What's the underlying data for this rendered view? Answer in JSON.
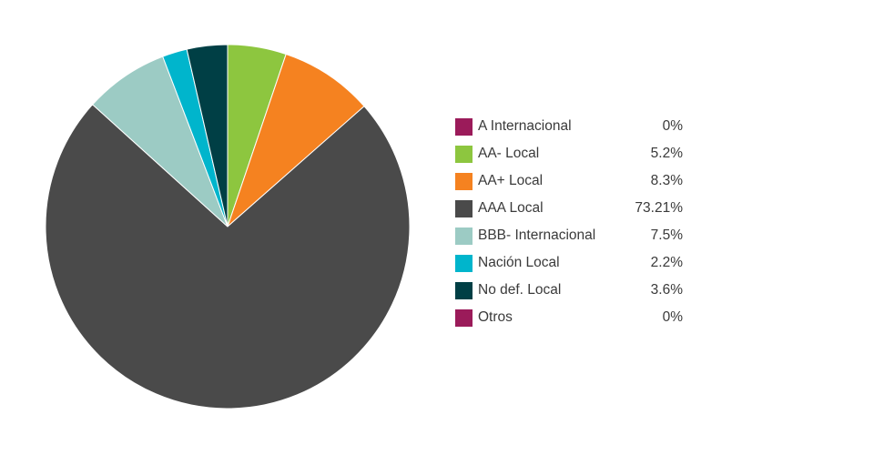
{
  "chart_data": {
    "type": "pie",
    "start_angle_deg": 0,
    "direction": "clockwise",
    "legend_position": "right",
    "slices": [
      {
        "label": "A Internacional",
        "value": 0,
        "value_label": "0%",
        "color": "#9b1b5a"
      },
      {
        "label": "AA- Local",
        "value": 5.2,
        "value_label": "5.2%",
        "color": "#8dc63f"
      },
      {
        "label": "AA+ Local",
        "value": 8.3,
        "value_label": "8.3%",
        "color": "#f58220"
      },
      {
        "label": "AAA Local",
        "value": 73.21,
        "value_label": "73.21%",
        "color": "#4a4a4a"
      },
      {
        "label": "BBB- Internacional",
        "value": 7.5,
        "value_label": "7.5%",
        "color": "#9ccbc4"
      },
      {
        "label": "Nación Local",
        "value": 2.2,
        "value_label": "2.2%",
        "color": "#00b5cc"
      },
      {
        "label": "No def. Local",
        "value": 3.6,
        "value_label": "3.6%",
        "color": "#003f45"
      },
      {
        "label": "Otros",
        "value": 0,
        "value_label": "0%",
        "color": "#9b1b5a"
      }
    ]
  }
}
